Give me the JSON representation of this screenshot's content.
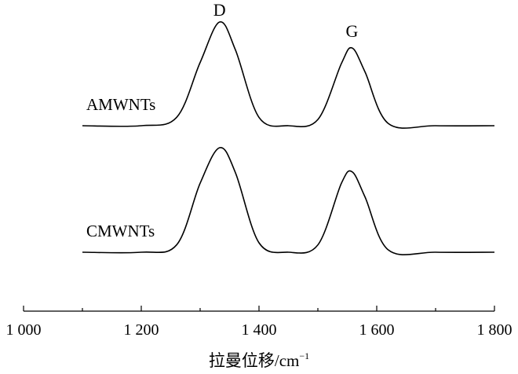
{
  "chart_data": {
    "type": "line",
    "title": "",
    "xlabel": "拉曼位移/cm",
    "xlabel_superscript": "−1",
    "ylabel": "",
    "xlim": [
      1000,
      1800
    ],
    "x_ticks": [
      1000,
      1200,
      1400,
      1600,
      1800
    ],
    "x_tick_labels": [
      "1 000",
      "1 200",
      "1 400",
      "1 600",
      "1 800"
    ],
    "y_axis_visible": false,
    "grid": false,
    "legend": "none",
    "peak_annotations": [
      {
        "text": "D",
        "x": 1333
      },
      {
        "text": "G",
        "x": 1558
      }
    ],
    "series": [
      {
        "name": "AMWNTs",
        "x": [
          1100,
          1200,
          1260,
          1300,
          1333,
          1360,
          1400,
          1450,
          1500,
          1540,
          1558,
          1580,
          1620,
          1700,
          1800
        ],
        "values": [
          0,
          0,
          0.08,
          0.61,
          1.0,
          0.73,
          0.08,
          0,
          0.06,
          0.6,
          0.75,
          0.52,
          0.02,
          0,
          0
        ]
      },
      {
        "name": "CMWNTs",
        "x": [
          1100,
          1200,
          1260,
          1300,
          1333,
          1360,
          1400,
          1450,
          1500,
          1540,
          1558,
          1580,
          1620,
          1700,
          1800
        ],
        "values": [
          0,
          0,
          0.07,
          0.66,
          1.0,
          0.76,
          0.09,
          0,
          0.07,
          0.66,
          0.77,
          0.53,
          0.02,
          0,
          0
        ]
      }
    ]
  }
}
